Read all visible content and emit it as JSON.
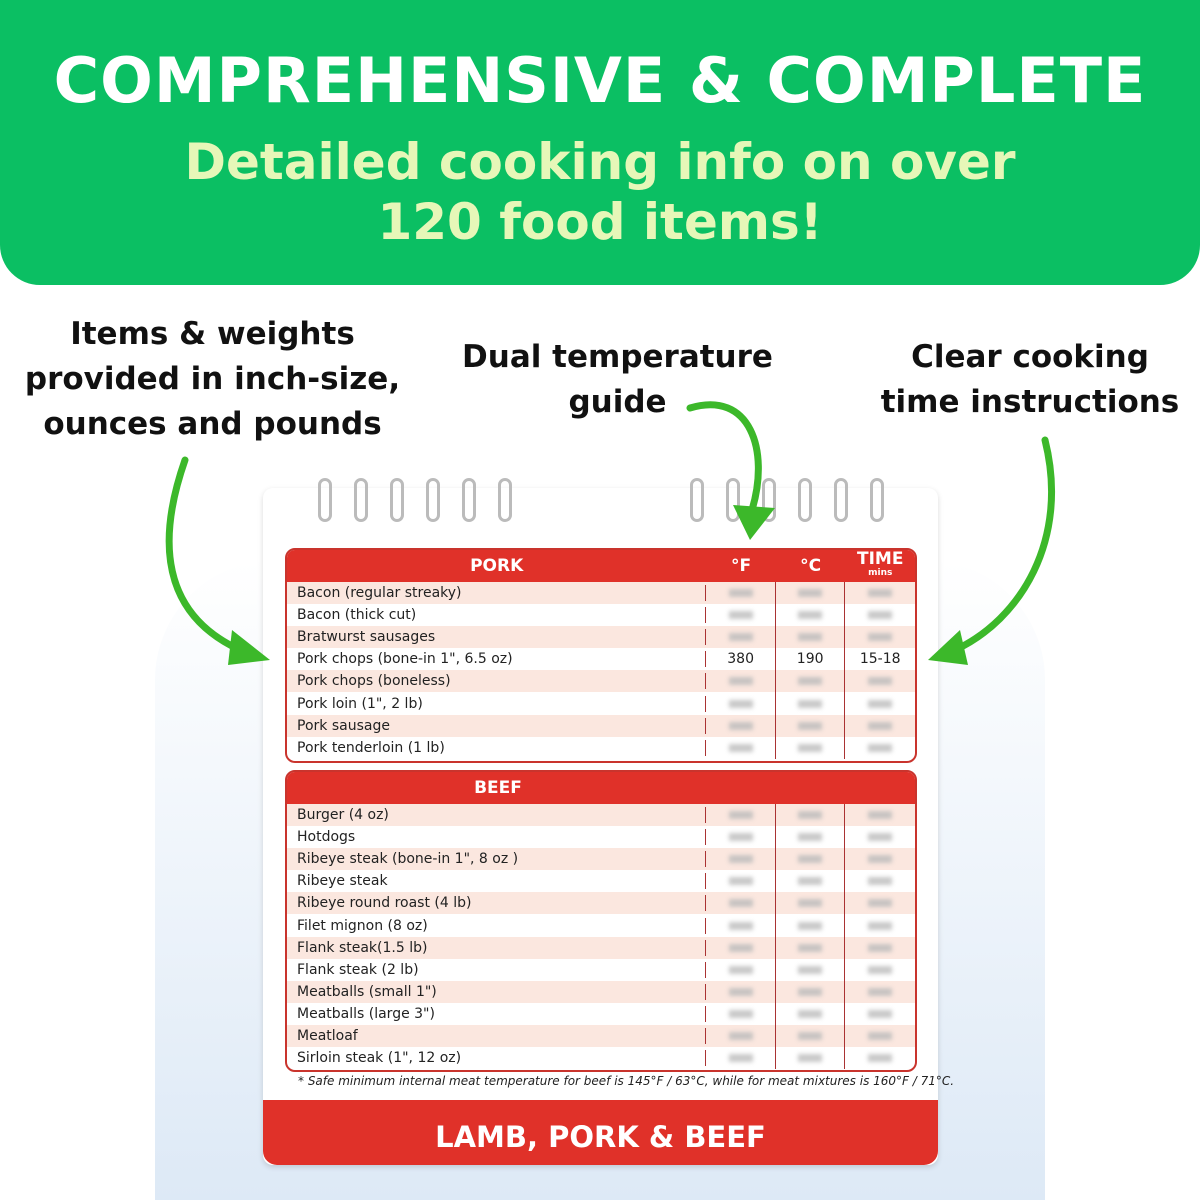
{
  "banner": {
    "title": "COMPREHENSIVE & COMPLETE",
    "subtitle_line1": "Detailed cooking info on over",
    "subtitle_line2": "120 food items!"
  },
  "callouts": {
    "left": [
      "Items & weights",
      "provided in inch-size,",
      "ounces and pounds"
    ],
    "center": [
      "Dual temperature",
      "guide"
    ],
    "right": [
      "Clear cooking",
      "time instructions"
    ]
  },
  "colors": {
    "green": "#0bbf63",
    "red": "#e03129",
    "arrow": "#3cb82a"
  },
  "pork": {
    "header": "PORK",
    "col_f": "°F",
    "col_c": "°C",
    "col_time": "TIME",
    "col_time_unit": "mins",
    "rows": [
      {
        "name": "Bacon (regular streaky)"
      },
      {
        "name": "Bacon (thick cut)"
      },
      {
        "name": "Bratwurst sausages"
      },
      {
        "name": "Pork chops (bone-in 1\", 6.5 oz)",
        "f": "380",
        "c": "190",
        "time": "15-18"
      },
      {
        "name": "Pork chops (boneless)"
      },
      {
        "name": "Pork loin (1\", 2 lb)"
      },
      {
        "name": "Pork sausage"
      },
      {
        "name": "Pork tenderloin (1 lb)"
      }
    ]
  },
  "beef": {
    "header": "BEEF",
    "rows": [
      {
        "name": "Burger (4 oz)"
      },
      {
        "name": "Hotdogs"
      },
      {
        "name": "Ribeye steak (bone-in 1\", 8 oz )"
      },
      {
        "name": "Ribeye steak"
      },
      {
        "name": "Ribeye round roast (4 lb)"
      },
      {
        "name": "Filet mignon (8 oz)"
      },
      {
        "name": "Flank steak(1.5 lb)"
      },
      {
        "name": "Flank steak (2 lb)"
      },
      {
        "name": "Meatballs (small 1\")"
      },
      {
        "name": "Meatballs (large 3\")"
      },
      {
        "name": "Meatloaf"
      },
      {
        "name": "Sirloin steak (1\", 12 oz)"
      }
    ]
  },
  "footnote": "* Safe minimum internal meat temperature for beef is 145°F / 63°C, while for meat mixtures is 160°F / 71°C.",
  "footer": "LAMB, PORK & BEEF"
}
